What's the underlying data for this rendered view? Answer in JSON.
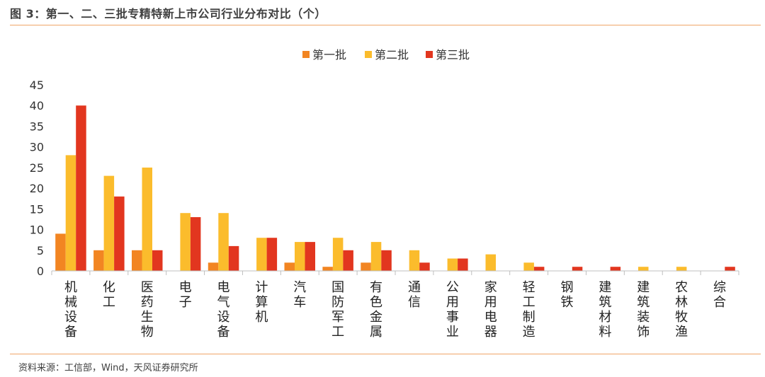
{
  "figure": {
    "title": "图 3：第一、二、三批专精特新上市公司行业分布对比（个）",
    "source": "资料来源：工信部，Wind，天风证券研究所"
  },
  "chart_data": {
    "type": "bar",
    "title": "第一、二、三批专精特新上市公司行业分布对比（个）",
    "xlabel": "",
    "ylabel": "",
    "ylim": [
      0,
      45
    ],
    "yticks": [
      0,
      5,
      10,
      15,
      20,
      25,
      30,
      35,
      40,
      45
    ],
    "grid": false,
    "legend_position": "top-center",
    "categories": [
      "机械设备",
      "化工",
      "医药生物",
      "电子",
      "电气设备",
      "计算机",
      "汽车",
      "国防军工",
      "有色金属",
      "通信",
      "公用事业",
      "家用电器",
      "轻工制造",
      "钢铁",
      "建筑材料",
      "建筑装饰",
      "农林牧渔",
      "综合"
    ],
    "series": [
      {
        "name": "第一批",
        "color": "#f28522",
        "values": [
          9,
          5,
          5,
          0,
          2,
          0,
          2,
          1,
          2,
          0,
          0,
          0,
          0,
          0,
          0,
          0,
          0,
          0
        ]
      },
      {
        "name": "第二批",
        "color": "#fbbc2c",
        "values": [
          28,
          23,
          25,
          14,
          14,
          8,
          7,
          8,
          7,
          5,
          3,
          4,
          2,
          0,
          0,
          1,
          1,
          0
        ]
      },
      {
        "name": "第三批",
        "color": "#e2361f",
        "values": [
          40,
          18,
          5,
          13,
          6,
          8,
          7,
          5,
          5,
          2,
          3,
          0,
          1,
          1,
          1,
          0,
          0,
          1
        ]
      }
    ]
  }
}
